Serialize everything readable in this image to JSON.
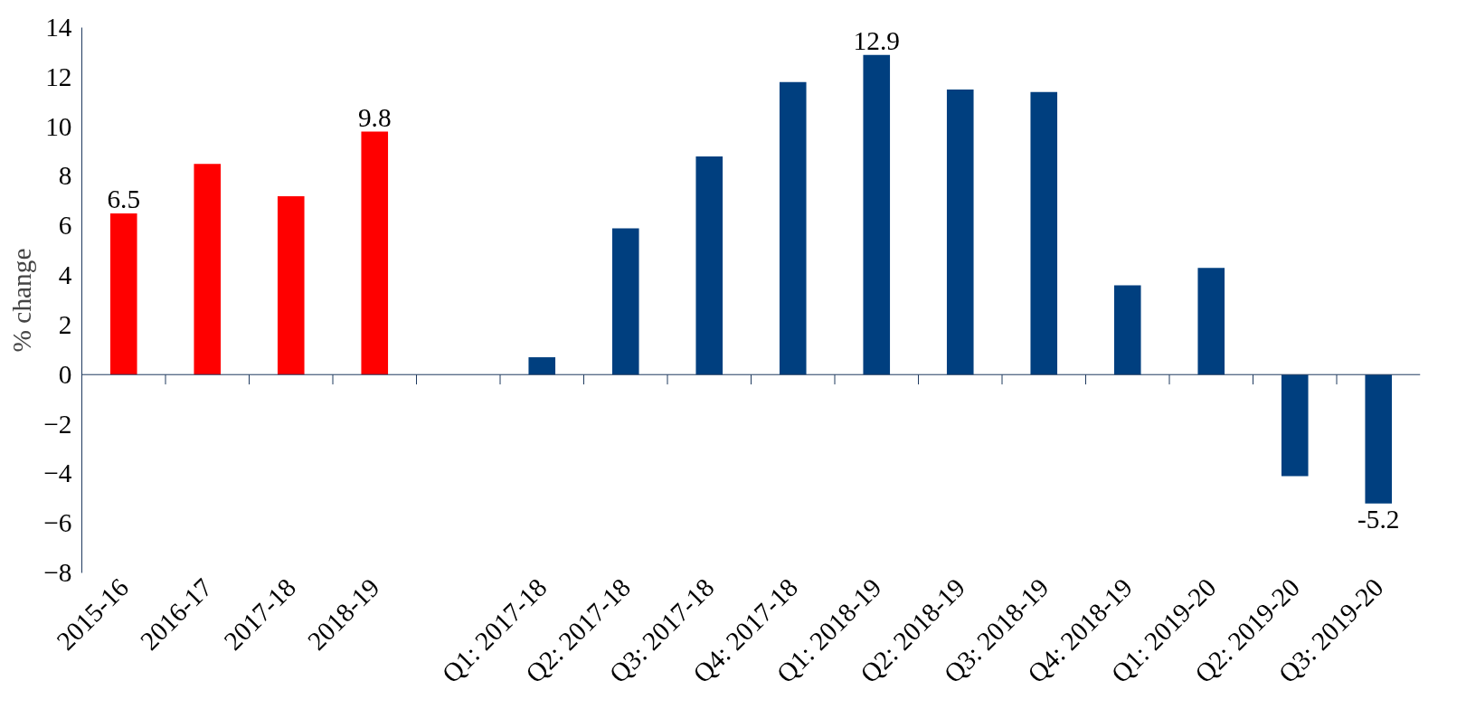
{
  "chart_data": {
    "type": "bar",
    "ylabel": "% change",
    "categories": [
      "2015-16",
      "2016-17",
      "2017-18",
      "2018-19",
      null,
      "Q1: 2017-18",
      "Q2: 2017-18",
      "Q3: 2017-18",
      "Q4: 2017-18",
      "Q1: 2018-19",
      "Q2: 2018-19",
      "Q3: 2018-19",
      "Q4: 2018-19",
      "Q1: 2019-20",
      "Q2: 2019-20",
      "Q3: 2019-20"
    ],
    "values": [
      6.5,
      8.5,
      7.2,
      9.8,
      null,
      0.7,
      5.9,
      8.8,
      11.8,
      12.9,
      11.5,
      11.4,
      3.6,
      4.3,
      -4.1,
      -5.2
    ],
    "colors": [
      "#ff0000",
      "#ff0000",
      "#ff0000",
      "#ff0000",
      "#003f7f",
      "#003f7f",
      "#003f7f",
      "#003f7f",
      "#003f7f",
      "#003f7f",
      "#003f7f",
      "#003f7f",
      "#003f7f",
      "#003f7f",
      "#003f7f",
      "#003f7f"
    ],
    "value_labels": [
      "6.5",
      null,
      null,
      "9.8",
      null,
      null,
      null,
      null,
      null,
      "12.9",
      null,
      null,
      null,
      null,
      null,
      "-5.2"
    ],
    "ylim": [
      -8,
      14
    ],
    "yticks": [
      -8,
      -6,
      -4,
      -2,
      0,
      2,
      4,
      6,
      8,
      10,
      12,
      14
    ],
    "grid": false
  }
}
